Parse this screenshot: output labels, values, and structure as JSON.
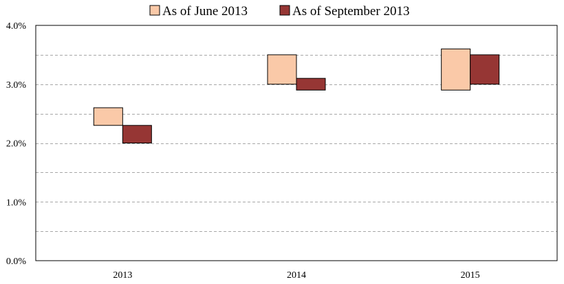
{
  "chart_data": {
    "type": "bar",
    "subtype": "floating-range",
    "categories": [
      "2013",
      "2014",
      "2015"
    ],
    "series": [
      {
        "name": "As of June 2013",
        "color": "#FAC9A8",
        "ranges": [
          [
            2.3,
            2.6
          ],
          [
            3.0,
            3.5
          ],
          [
            2.9,
            3.6
          ]
        ]
      },
      {
        "name": "As of September 2013",
        "color": "#963634",
        "ranges": [
          [
            2.0,
            2.3
          ],
          [
            2.9,
            3.1
          ],
          [
            3.0,
            3.5
          ]
        ]
      }
    ],
    "ylim": [
      0,
      4.0
    ],
    "yticks": [
      "0.0%",
      "1.0%",
      "2.0%",
      "3.0%",
      "4.0%"
    ],
    "ytick_values": [
      0,
      1,
      2,
      3,
      4
    ],
    "minor_gridlines": [
      0.5,
      1.5,
      2.5,
      3.5
    ],
    "grid": true,
    "grid_style": "dashed",
    "legend_position": "top-center",
    "title": "",
    "xlabel": "",
    "ylabel": ""
  }
}
